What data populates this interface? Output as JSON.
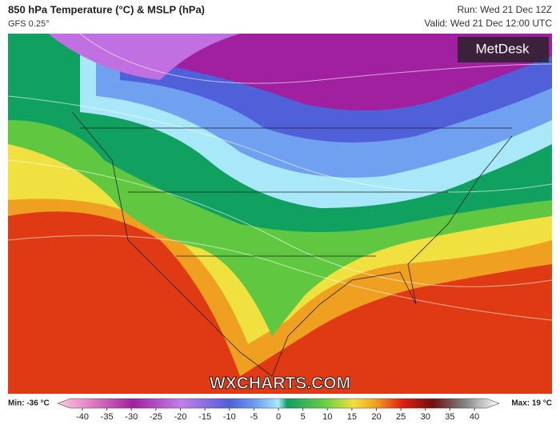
{
  "header": {
    "title": "850 hPa Temperature (°C) & MSLP (hPa)",
    "model": "GFS 0.25°",
    "run": "Run: Wed 21 Dec 12Z",
    "valid": "Valid: Wed 21 Dec 12:00 UTC"
  },
  "brand": "MetDesk",
  "watermark": "WXCHARTS.COM",
  "legend": {
    "min": "Min: -36 °C",
    "max": "Max: 19 °C",
    "ticks": [
      -40,
      -35,
      -30,
      -25,
      -20,
      -15,
      -10,
      -5,
      0,
      5,
      10,
      15,
      20,
      25,
      30,
      35,
      40
    ]
  }
}
